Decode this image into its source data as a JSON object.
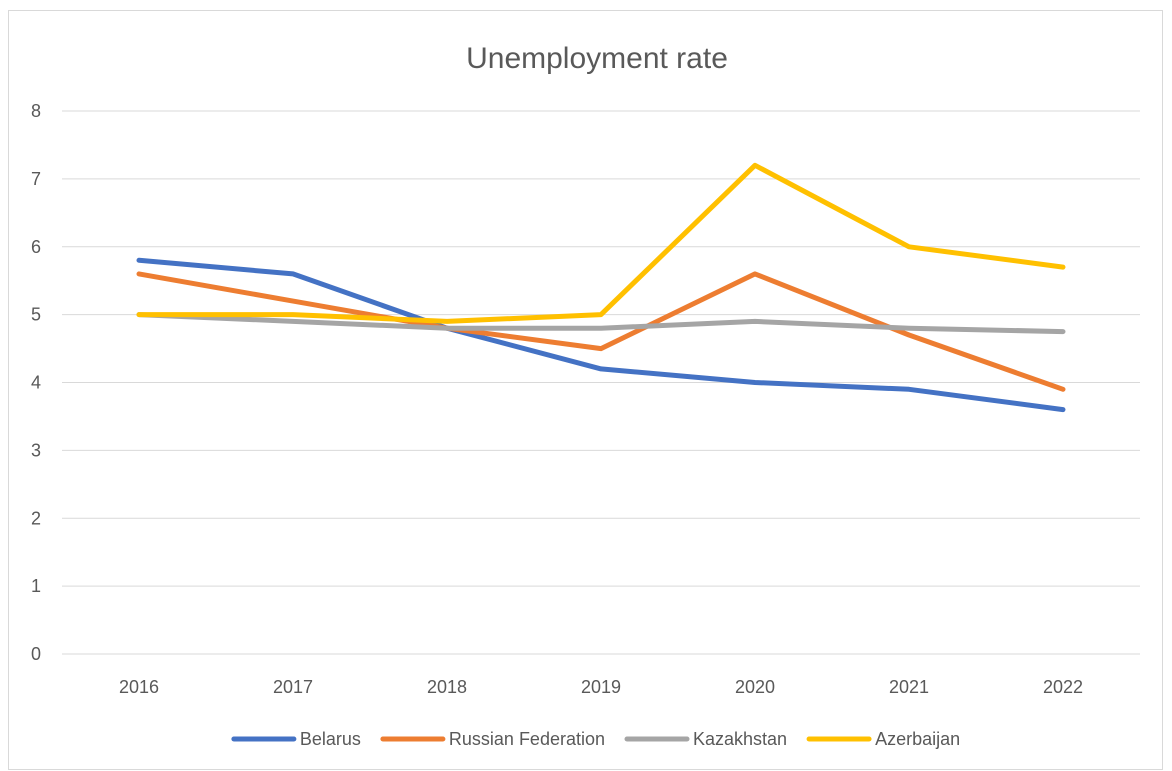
{
  "chart_data": {
    "type": "line",
    "title": "Unemployment rate",
    "xlabel": "",
    "ylabel": "",
    "categories": [
      "2016",
      "2017",
      "2018",
      "2019",
      "2020",
      "2021",
      "2022"
    ],
    "ylim": [
      0,
      8
    ],
    "yticks": [
      "0",
      "1",
      "2",
      "3",
      "4",
      "5",
      "6",
      "7",
      "8"
    ],
    "grid": true,
    "legend_position": "bottom",
    "series": [
      {
        "name": "Belarus",
        "color": "#4472C4",
        "values": [
          5.8,
          5.6,
          4.8,
          4.2,
          4.0,
          3.9,
          3.6
        ]
      },
      {
        "name": "Russian Federation",
        "color": "#ED7D31",
        "values": [
          5.6,
          5.2,
          4.8,
          4.5,
          5.6,
          4.7,
          3.9
        ]
      },
      {
        "name": "Kazakhstan",
        "color": "#A5A5A5",
        "values": [
          5.0,
          4.9,
          4.8,
          4.8,
          4.9,
          4.8,
          4.75
        ]
      },
      {
        "name": "Azerbaijan",
        "color": "#FFC000",
        "values": [
          5.0,
          5.0,
          4.9,
          5.0,
          7.2,
          6.0,
          5.7
        ]
      }
    ]
  }
}
